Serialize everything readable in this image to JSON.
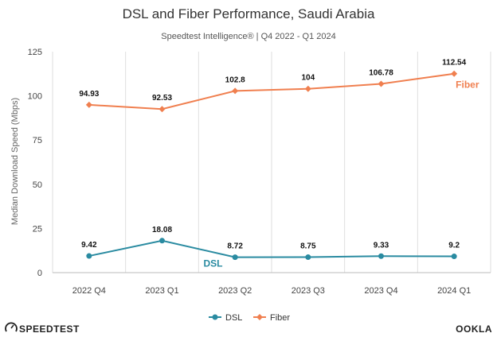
{
  "chart_data": {
    "type": "line",
    "title": "DSL and Fiber Performance, Saudi Arabia",
    "subtitle": "Speedtest Intelligence® | Q4 2022 - Q1 2024",
    "ylabel": "Median Download Speed (Mbps)",
    "xlabel": "",
    "categories": [
      "2022 Q4",
      "2023 Q1",
      "2023 Q2",
      "2023 Q3",
      "2023 Q4",
      "2024 Q1"
    ],
    "ylim": [
      0,
      125
    ],
    "yticks": [
      0,
      25,
      50,
      75,
      100,
      125
    ],
    "grid": "vertical",
    "legend_placement": "bottom-center",
    "series": [
      {
        "name": "DSL",
        "color": "#2a8ba1",
        "marker": "circle",
        "values": [
          9.42,
          18.08,
          8.72,
          8.75,
          9.33,
          9.2
        ],
        "data_labels": [
          "9.42",
          "18.08",
          "8.72",
          "8.75",
          "9.33",
          "9.2"
        ],
        "inline_label": "DSL"
      },
      {
        "name": "Fiber",
        "color": "#f07f4f",
        "marker": "diamond",
        "values": [
          94.93,
          92.53,
          102.8,
          104,
          106.78,
          112.54
        ],
        "data_labels": [
          "94.93",
          "92.53",
          "102.8",
          "104",
          "106.78",
          "112.54"
        ],
        "inline_label": "Fiber"
      }
    ]
  },
  "footer": {
    "left_brand": "SPEEDTEST",
    "right_brand": "OOKLA",
    "left_icon": "speedometer-icon"
  }
}
